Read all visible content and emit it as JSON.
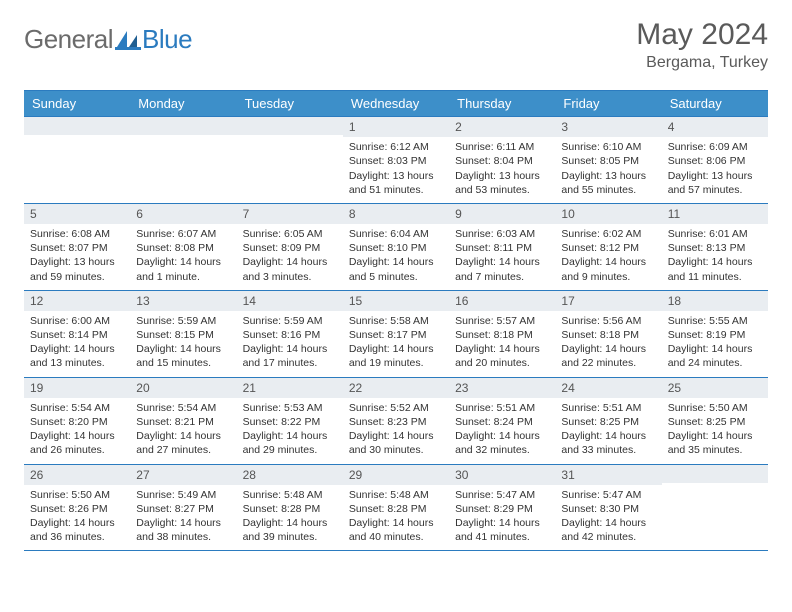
{
  "brand": {
    "general": "General",
    "blue": "Blue"
  },
  "title": {
    "month": "May 2024",
    "location": "Bergama, Turkey"
  },
  "colors": {
    "header_bg": "#3d8fc9",
    "border": "#2b7bbf",
    "daynum_bg": "#e9edf1"
  },
  "weekdays": [
    "Sunday",
    "Monday",
    "Tuesday",
    "Wednesday",
    "Thursday",
    "Friday",
    "Saturday"
  ],
  "weeks": [
    [
      {
        "n": "",
        "lines": []
      },
      {
        "n": "",
        "lines": []
      },
      {
        "n": "",
        "lines": []
      },
      {
        "n": "1",
        "lines": [
          "Sunrise: 6:12 AM",
          "Sunset: 8:03 PM",
          "Daylight: 13 hours and 51 minutes."
        ]
      },
      {
        "n": "2",
        "lines": [
          "Sunrise: 6:11 AM",
          "Sunset: 8:04 PM",
          "Daylight: 13 hours and 53 minutes."
        ]
      },
      {
        "n": "3",
        "lines": [
          "Sunrise: 6:10 AM",
          "Sunset: 8:05 PM",
          "Daylight: 13 hours and 55 minutes."
        ]
      },
      {
        "n": "4",
        "lines": [
          "Sunrise: 6:09 AM",
          "Sunset: 8:06 PM",
          "Daylight: 13 hours and 57 minutes."
        ]
      }
    ],
    [
      {
        "n": "5",
        "lines": [
          "Sunrise: 6:08 AM",
          "Sunset: 8:07 PM",
          "Daylight: 13 hours and 59 minutes."
        ]
      },
      {
        "n": "6",
        "lines": [
          "Sunrise: 6:07 AM",
          "Sunset: 8:08 PM",
          "Daylight: 14 hours and 1 minute."
        ]
      },
      {
        "n": "7",
        "lines": [
          "Sunrise: 6:05 AM",
          "Sunset: 8:09 PM",
          "Daylight: 14 hours and 3 minutes."
        ]
      },
      {
        "n": "8",
        "lines": [
          "Sunrise: 6:04 AM",
          "Sunset: 8:10 PM",
          "Daylight: 14 hours and 5 minutes."
        ]
      },
      {
        "n": "9",
        "lines": [
          "Sunrise: 6:03 AM",
          "Sunset: 8:11 PM",
          "Daylight: 14 hours and 7 minutes."
        ]
      },
      {
        "n": "10",
        "lines": [
          "Sunrise: 6:02 AM",
          "Sunset: 8:12 PM",
          "Daylight: 14 hours and 9 minutes."
        ]
      },
      {
        "n": "11",
        "lines": [
          "Sunrise: 6:01 AM",
          "Sunset: 8:13 PM",
          "Daylight: 14 hours and 11 minutes."
        ]
      }
    ],
    [
      {
        "n": "12",
        "lines": [
          "Sunrise: 6:00 AM",
          "Sunset: 8:14 PM",
          "Daylight: 14 hours and 13 minutes."
        ]
      },
      {
        "n": "13",
        "lines": [
          "Sunrise: 5:59 AM",
          "Sunset: 8:15 PM",
          "Daylight: 14 hours and 15 minutes."
        ]
      },
      {
        "n": "14",
        "lines": [
          "Sunrise: 5:59 AM",
          "Sunset: 8:16 PM",
          "Daylight: 14 hours and 17 minutes."
        ]
      },
      {
        "n": "15",
        "lines": [
          "Sunrise: 5:58 AM",
          "Sunset: 8:17 PM",
          "Daylight: 14 hours and 19 minutes."
        ]
      },
      {
        "n": "16",
        "lines": [
          "Sunrise: 5:57 AM",
          "Sunset: 8:18 PM",
          "Daylight: 14 hours and 20 minutes."
        ]
      },
      {
        "n": "17",
        "lines": [
          "Sunrise: 5:56 AM",
          "Sunset: 8:18 PM",
          "Daylight: 14 hours and 22 minutes."
        ]
      },
      {
        "n": "18",
        "lines": [
          "Sunrise: 5:55 AM",
          "Sunset: 8:19 PM",
          "Daylight: 14 hours and 24 minutes."
        ]
      }
    ],
    [
      {
        "n": "19",
        "lines": [
          "Sunrise: 5:54 AM",
          "Sunset: 8:20 PM",
          "Daylight: 14 hours and 26 minutes."
        ]
      },
      {
        "n": "20",
        "lines": [
          "Sunrise: 5:54 AM",
          "Sunset: 8:21 PM",
          "Daylight: 14 hours and 27 minutes."
        ]
      },
      {
        "n": "21",
        "lines": [
          "Sunrise: 5:53 AM",
          "Sunset: 8:22 PM",
          "Daylight: 14 hours and 29 minutes."
        ]
      },
      {
        "n": "22",
        "lines": [
          "Sunrise: 5:52 AM",
          "Sunset: 8:23 PM",
          "Daylight: 14 hours and 30 minutes."
        ]
      },
      {
        "n": "23",
        "lines": [
          "Sunrise: 5:51 AM",
          "Sunset: 8:24 PM",
          "Daylight: 14 hours and 32 minutes."
        ]
      },
      {
        "n": "24",
        "lines": [
          "Sunrise: 5:51 AM",
          "Sunset: 8:25 PM",
          "Daylight: 14 hours and 33 minutes."
        ]
      },
      {
        "n": "25",
        "lines": [
          "Sunrise: 5:50 AM",
          "Sunset: 8:25 PM",
          "Daylight: 14 hours and 35 minutes."
        ]
      }
    ],
    [
      {
        "n": "26",
        "lines": [
          "Sunrise: 5:50 AM",
          "Sunset: 8:26 PM",
          "Daylight: 14 hours and 36 minutes."
        ]
      },
      {
        "n": "27",
        "lines": [
          "Sunrise: 5:49 AM",
          "Sunset: 8:27 PM",
          "Daylight: 14 hours and 38 minutes."
        ]
      },
      {
        "n": "28",
        "lines": [
          "Sunrise: 5:48 AM",
          "Sunset: 8:28 PM",
          "Daylight: 14 hours and 39 minutes."
        ]
      },
      {
        "n": "29",
        "lines": [
          "Sunrise: 5:48 AM",
          "Sunset: 8:28 PM",
          "Daylight: 14 hours and 40 minutes."
        ]
      },
      {
        "n": "30",
        "lines": [
          "Sunrise: 5:47 AM",
          "Sunset: 8:29 PM",
          "Daylight: 14 hours and 41 minutes."
        ]
      },
      {
        "n": "31",
        "lines": [
          "Sunrise: 5:47 AM",
          "Sunset: 8:30 PM",
          "Daylight: 14 hours and 42 minutes."
        ]
      },
      {
        "n": "",
        "lines": []
      }
    ]
  ]
}
